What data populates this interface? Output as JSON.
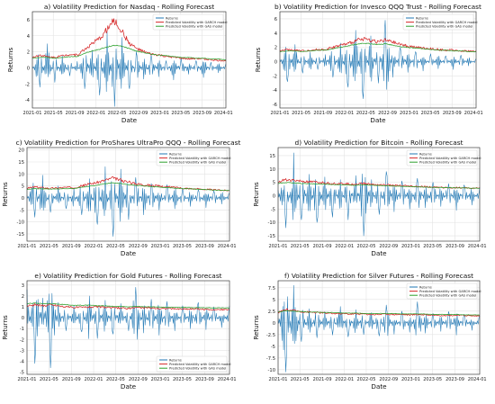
{
  "palette": {
    "returns": "#1f77b4",
    "garch": "#d62728",
    "gas": "#2ca02c",
    "grid": "#e3e3e3",
    "axis": "#222222"
  },
  "chart_data": [
    {
      "type": "line",
      "title": "a) Volatility Prediction for Nasdaq - Rolling Forecast",
      "xlabel": "Date",
      "ylabel": "Returns",
      "x_ticks": [
        "2021-01",
        "2021-05",
        "2021-09",
        "2022-01",
        "2022-05",
        "2022-09",
        "2023-01",
        "2023-05",
        "2023-09",
        "2024-01"
      ],
      "y_ticks": [
        -4,
        -2,
        0,
        2,
        4,
        6
      ],
      "ylim": [
        -5,
        7
      ],
      "x_range": [
        "2021-01-01",
        "2024-01-15"
      ],
      "grid": true,
      "legend_position": "top-right",
      "series": [
        {
          "name": "Returns",
          "color": "#1f77b4",
          "kind": "returns",
          "values": [
            0.2,
            -2.4,
            3.0,
            -1.8,
            1.5,
            -1.0,
            0.8,
            -2.6,
            2.2,
            -3.4,
            4.5,
            -4.8,
            3.8,
            -2.6,
            2.0,
            -1.4,
            1.6,
            -1.1,
            0.9,
            -1.5,
            1.2,
            -0.8,
            0.9,
            -1.2,
            0.7,
            -0.6,
            0.5
          ]
        },
        {
          "name": "Predicted Volatility with GARCH model",
          "color": "#d62728",
          "kind": "volatility",
          "values": [
            1.3,
            1.6,
            1.4,
            1.3,
            1.5,
            1.7,
            1.6,
            2.3,
            3.0,
            3.6,
            4.8,
            5.9,
            4.6,
            3.1,
            2.4,
            2.0,
            1.7,
            1.6,
            1.4,
            1.3,
            1.2,
            1.1,
            1.2,
            1.1,
            1.0,
            0.9,
            0.9
          ]
        },
        {
          "name": "Predicted Volatility with GAS model",
          "color": "#2ca02c",
          "kind": "volatility",
          "values": [
            1.2,
            1.3,
            1.3,
            1.2,
            1.3,
            1.4,
            1.4,
            1.8,
            2.1,
            2.3,
            2.6,
            2.8,
            2.7,
            2.4,
            2.1,
            1.9,
            1.7,
            1.6,
            1.5,
            1.4,
            1.3,
            1.3,
            1.2,
            1.2,
            1.1,
            1.1,
            1.0
          ]
        }
      ]
    },
    {
      "type": "line",
      "title": "b) Volatility Prediction for Invesco QQQ Trust - Rolling Forecast",
      "xlabel": "Date",
      "ylabel": "Returns",
      "x_ticks": [
        "2021-01",
        "2021-05",
        "2021-09",
        "2022-01",
        "2022-05",
        "2022-09",
        "2023-01",
        "2023-05",
        "2023-09",
        "2024-01"
      ],
      "y_ticks": [
        -6,
        -4,
        -2,
        0,
        2,
        4,
        6
      ],
      "ylim": [
        -6.5,
        7
      ],
      "x_range": [
        "2021-01-01",
        "2024-01-15"
      ],
      "grid": true,
      "legend_position": "top-right",
      "series": [
        {
          "name": "Returns",
          "color": "#1f77b4",
          "kind": "returns",
          "values": [
            0.3,
            -2.8,
            2.4,
            -1.6,
            1.3,
            -1.1,
            1.0,
            -2.2,
            2.6,
            -3.6,
            4.4,
            -5.2,
            3.6,
            -3.0,
            5.8,
            -2.2,
            2.0,
            -1.5,
            1.4,
            -1.3,
            1.1,
            -1.0,
            0.8,
            -1.1,
            0.9,
            -0.6,
            0.4
          ]
        },
        {
          "name": "Predicted Volatility with GARCH model",
          "color": "#d62728",
          "kind": "volatility",
          "values": [
            1.5,
            1.7,
            1.6,
            1.5,
            1.6,
            1.7,
            1.7,
            2.0,
            2.3,
            2.5,
            2.9,
            3.2,
            3.0,
            2.8,
            3.0,
            2.7,
            2.4,
            2.2,
            2.0,
            1.9,
            1.8,
            1.7,
            1.6,
            1.6,
            1.5,
            1.5,
            1.4
          ]
        },
        {
          "name": "Predicted Volatility with GAS model",
          "color": "#2ca02c",
          "kind": "volatility",
          "values": [
            1.4,
            1.5,
            1.5,
            1.4,
            1.5,
            1.6,
            1.6,
            1.8,
            2.0,
            2.2,
            2.4,
            2.6,
            2.5,
            2.4,
            2.5,
            2.3,
            2.1,
            2.0,
            1.9,
            1.8,
            1.7,
            1.6,
            1.6,
            1.5,
            1.5,
            1.4,
            1.4
          ]
        }
      ]
    },
    {
      "type": "line",
      "title": "c) Volatility Prediction for ProShares UltraPro QQQ - Rolling Forecast",
      "xlabel": "Date",
      "ylabel": "Returns",
      "x_ticks": [
        "2021-01",
        "2021-05",
        "2021-09",
        "2022-01",
        "2022-05",
        "2022-09",
        "2023-01",
        "2023-05",
        "2023-09",
        "2024-01"
      ],
      "y_ticks": [
        -15,
        -10,
        -5,
        0,
        5,
        10,
        15,
        20
      ],
      "ylim": [
        -18,
        21
      ],
      "x_range": [
        "2021-01-01",
        "2024-01-15"
      ],
      "grid": true,
      "legend_position": "top-right",
      "series": [
        {
          "name": "Returns",
          "color": "#1f77b4",
          "kind": "returns",
          "values": [
            1.0,
            -8.0,
            9.5,
            -6.0,
            5.0,
            -4.5,
            4.0,
            -7.0,
            8.0,
            -11.0,
            13.0,
            -16.0,
            12.0,
            -9.0,
            8.5,
            -7.0,
            6.0,
            -5.0,
            5.5,
            -4.5,
            4.0,
            -3.5,
            3.5,
            -4.0,
            3.0,
            -2.5,
            2.0
          ]
        },
        {
          "name": "Predicted Volatility with GARCH model",
          "color": "#d62728",
          "kind": "volatility",
          "values": [
            4.0,
            4.6,
            4.3,
            4.0,
            4.2,
            4.4,
            4.3,
            5.0,
            5.8,
            6.5,
            7.4,
            8.2,
            7.5,
            6.6,
            6.0,
            5.6,
            5.2,
            4.9,
            4.6,
            4.4,
            4.1,
            3.9,
            3.7,
            3.6,
            3.4,
            3.2,
            3.1
          ]
        },
        {
          "name": "Predicted Volatility with GAS model",
          "color": "#2ca02c",
          "kind": "volatility",
          "values": [
            3.6,
            3.9,
            3.8,
            3.7,
            3.8,
            3.9,
            3.9,
            4.4,
            4.9,
            5.4,
            5.9,
            6.3,
            6.0,
            5.6,
            5.3,
            5.0,
            4.7,
            4.5,
            4.3,
            4.1,
            3.9,
            3.8,
            3.6,
            3.5,
            3.3,
            3.2,
            3.1
          ]
        }
      ]
    },
    {
      "type": "line",
      "title": "d) Volatility Prediction for Bitcoin - Rolling Forecast",
      "xlabel": "Date",
      "ylabel": "Returns",
      "x_ticks": [
        "2021-01",
        "2021-05",
        "2021-09",
        "2022-01",
        "2022-05",
        "2022-09",
        "2023-01",
        "2023-05",
        "2023-09",
        "2024-01"
      ],
      "y_ticks": [
        -15,
        -10,
        -5,
        0,
        5,
        10,
        15
      ],
      "ylim": [
        -17,
        18
      ],
      "x_range": [
        "2021-01-01",
        "2024-01-15"
      ],
      "grid": true,
      "legend_position": "top-right",
      "series": [
        {
          "name": "Returns",
          "color": "#1f77b4",
          "kind": "returns",
          "values": [
            2.0,
            -12.0,
            16.0,
            -9.0,
            8.0,
            -10.0,
            7.0,
            -8.0,
            6.0,
            -9.0,
            7.5,
            -15.0,
            6.0,
            -7.0,
            9.0,
            -6.0,
            5.5,
            -5.0,
            6.5,
            -4.5,
            5.0,
            -4.0,
            4.5,
            -5.5,
            4.0,
            -3.5,
            3.0
          ]
        },
        {
          "name": "Predicted Volatility with GARCH model",
          "color": "#d62728",
          "kind": "volatility",
          "values": [
            5.2,
            6.0,
            5.7,
            5.4,
            5.1,
            5.0,
            4.8,
            4.6,
            4.5,
            4.4,
            4.3,
            4.6,
            4.3,
            4.1,
            4.0,
            3.8,
            3.7,
            3.5,
            3.4,
            3.3,
            3.2,
            3.1,
            3.0,
            3.0,
            2.9,
            2.8,
            2.8
          ]
        },
        {
          "name": "Predicted Volatility with GAS model",
          "color": "#2ca02c",
          "kind": "volatility",
          "values": [
            4.6,
            4.9,
            4.8,
            4.6,
            4.5,
            4.4,
            4.3,
            4.2,
            4.1,
            4.0,
            3.9,
            4.1,
            3.9,
            3.8,
            3.7,
            3.6,
            3.5,
            3.4,
            3.3,
            3.2,
            3.1,
            3.1,
            3.0,
            2.9,
            2.9,
            2.8,
            2.8
          ]
        }
      ]
    },
    {
      "type": "line",
      "title": "e) Volatility Prediction for Gold Futures - Rolling Forecast",
      "xlabel": "Date",
      "ylabel": "Returns",
      "x_ticks": [
        "2021-01",
        "2021-05",
        "2021-09",
        "2022-01",
        "2022-05",
        "2022-09",
        "2023-01",
        "2023-05",
        "2023-09",
        "2024-01"
      ],
      "y_ticks": [
        -5,
        -4,
        -3,
        -2,
        -1,
        0,
        1,
        2,
        3
      ],
      "ylim": [
        -5.2,
        3.4
      ],
      "x_range": [
        "2021-01-01",
        "2024-01-15"
      ],
      "grid": true,
      "legend_position": "lower-right",
      "series": [
        {
          "name": "Returns",
          "color": "#1f77b4",
          "kind": "returns",
          "values": [
            2.6,
            -4.2,
            1.8,
            -4.6,
            1.4,
            -1.2,
            1.1,
            -1.3,
            2.0,
            -1.9,
            1.6,
            -1.5,
            1.3,
            -1.2,
            2.8,
            -1.4,
            1.7,
            -1.6,
            1.5,
            -1.2,
            1.1,
            -1.0,
            1.4,
            -1.1,
            1.0,
            -0.9,
            1.1
          ]
        },
        {
          "name": "Predicted Volatility with GARCH model",
          "color": "#d62728",
          "kind": "volatility",
          "values": [
            1.1,
            1.2,
            1.1,
            1.2,
            1.1,
            1.0,
            0.95,
            0.95,
            1.0,
            1.0,
            0.95,
            0.9,
            0.9,
            0.85,
            0.95,
            0.9,
            0.9,
            0.85,
            0.85,
            0.8,
            0.8,
            0.8,
            0.8,
            0.75,
            0.75,
            0.75,
            0.75
          ]
        },
        {
          "name": "Predicted Volatility with GAS model",
          "color": "#2ca02c",
          "kind": "volatility",
          "values": [
            1.3,
            1.35,
            1.3,
            1.3,
            1.25,
            1.2,
            1.15,
            1.15,
            1.15,
            1.1,
            1.1,
            1.05,
            1.05,
            1.0,
            1.05,
            1.0,
            1.0,
            0.98,
            0.96,
            0.95,
            0.94,
            0.93,
            0.92,
            0.91,
            0.9,
            0.9,
            0.9
          ]
        }
      ]
    },
    {
      "type": "line",
      "title": "f) Volatility Prediction for Silver Futures - Rolling Forecast",
      "xlabel": "Date",
      "ylabel": "Returns",
      "x_ticks": [
        "2021-01",
        "2021-05",
        "2021-09",
        "2022-01",
        "2022-05",
        "2022-09",
        "2023-01",
        "2023-05",
        "2023-09",
        "2024-01"
      ],
      "y_ticks": [
        -10.0,
        -7.5,
        -5.0,
        -2.5,
        0.0,
        2.5,
        5.0,
        7.5
      ],
      "ylim": [
        -11,
        9
      ],
      "x_range": [
        "2021-01-01",
        "2024-01-15"
      ],
      "grid": true,
      "legend_position": "top-right",
      "series": [
        {
          "name": "Returns",
          "color": "#1f77b4",
          "kind": "returns",
          "values": [
            1.0,
            -10.5,
            8.0,
            -4.0,
            3.0,
            -3.2,
            2.4,
            -2.6,
            3.5,
            -3.0,
            2.8,
            -2.5,
            2.2,
            -2.8,
            3.8,
            -2.4,
            2.5,
            -2.0,
            4.5,
            -2.2,
            2.0,
            -1.8,
            2.4,
            -2.6,
            1.8,
            -1.6,
            1.5
          ]
        },
        {
          "name": "Predicted Volatility with GARCH model",
          "color": "#d62728",
          "kind": "volatility",
          "values": [
            2.2,
            2.8,
            2.6,
            2.4,
            2.3,
            2.2,
            2.1,
            2.0,
            2.0,
            1.9,
            1.9,
            1.9,
            1.8,
            1.8,
            1.9,
            1.8,
            1.8,
            1.7,
            1.8,
            1.7,
            1.7,
            1.6,
            1.6,
            1.6,
            1.6,
            1.5,
            1.5
          ]
        },
        {
          "name": "Predicted Volatility with GAS model",
          "color": "#2ca02c",
          "kind": "volatility",
          "values": [
            2.3,
            2.6,
            2.5,
            2.4,
            2.3,
            2.3,
            2.2,
            2.2,
            2.1,
            2.1,
            2.1,
            2.0,
            2.0,
            2.0,
            2.0,
            2.0,
            1.9,
            1.9,
            1.9,
            1.9,
            1.8,
            1.8,
            1.8,
            1.8,
            1.7,
            1.7,
            1.7
          ]
        }
      ]
    }
  ]
}
